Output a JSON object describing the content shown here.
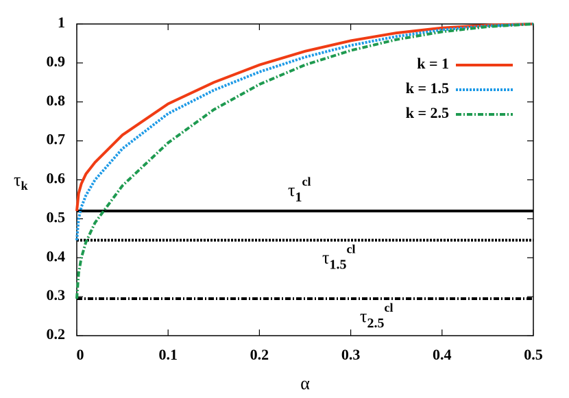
{
  "chart_data": {
    "type": "line",
    "x_label": "α",
    "y_label": {
      "symbol": "τ",
      "subscript": "k"
    },
    "x": [
      0,
      0.002,
      0.005,
      0.01,
      0.02,
      0.05,
      0.1,
      0.15,
      0.2,
      0.25,
      0.3,
      0.35,
      0.4,
      0.45,
      0.5
    ],
    "series": [
      {
        "name": "k = 1",
        "color": "#f03c14",
        "dash": "solid",
        "values": [
          0.52,
          0.565,
          0.59,
          0.615,
          0.645,
          0.715,
          0.795,
          0.85,
          0.895,
          0.93,
          0.957,
          0.977,
          0.99,
          0.997,
          1.0
        ]
      },
      {
        "name": "k = 1.5",
        "color": "#1e9ae6",
        "dash": "dotted",
        "values": [
          0.445,
          0.5,
          0.53,
          0.56,
          0.6,
          0.68,
          0.77,
          0.83,
          0.877,
          0.915,
          0.945,
          0.968,
          0.985,
          0.995,
          1.0
        ]
      },
      {
        "name": "k = 2.5",
        "color": "#1e9a50",
        "dash": "dashdot",
        "values": [
          0.295,
          0.36,
          0.4,
          0.44,
          0.49,
          0.585,
          0.695,
          0.78,
          0.845,
          0.895,
          0.932,
          0.96,
          0.98,
          0.993,
          1.0
        ]
      }
    ],
    "reference_lines": [
      {
        "value": 0.52,
        "symbol": "τ",
        "subscript": "1",
        "superscript": "cl",
        "color": "#000000",
        "dash": "solid"
      },
      {
        "value": 0.445,
        "symbol": "τ",
        "subscript": "1.5",
        "superscript": "cl",
        "color": "#000000",
        "dash": "dotted"
      },
      {
        "value": 0.295,
        "symbol": "τ",
        "subscript": "2.5",
        "superscript": "cl",
        "color": "#000000",
        "dash": "dashdot"
      }
    ],
    "xlim": [
      0,
      0.5
    ],
    "ylim": [
      0.2,
      1
    ],
    "xticks": [
      0,
      0.1,
      0.2,
      0.3,
      0.4,
      0.5
    ],
    "yticks": [
      0.2,
      0.3,
      0.4,
      0.5,
      0.6,
      0.7,
      0.8,
      0.9,
      1
    ],
    "legend": "top-right",
    "grid": false
  }
}
